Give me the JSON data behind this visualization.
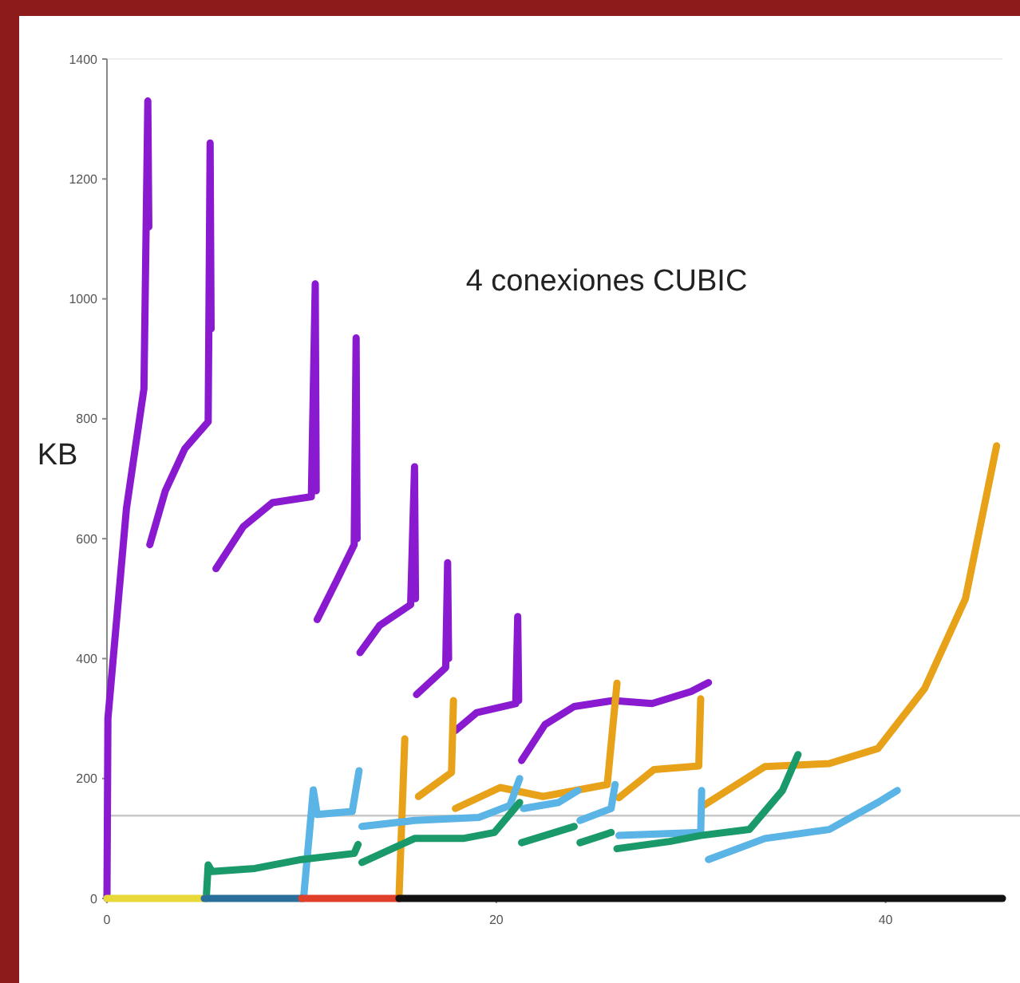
{
  "chart_data": {
    "type": "line",
    "title": "4 conexiones CUBIC",
    "ylabel": "KB",
    "xlim": [
      0,
      46
    ],
    "xticks": [
      0,
      20,
      40
    ],
    "ylim": [
      0,
      1400
    ],
    "yticks": [
      0,
      200,
      400,
      600,
      800,
      1000,
      1200,
      1400
    ],
    "grid": false,
    "marker": "none",
    "line_style": "solid",
    "ref_lines": [
      {
        "axis": "y",
        "value": 138,
        "color": "#c8c8c8"
      }
    ],
    "series": [
      {
        "color": "#8a1ad0",
        "x": [
          0,
          0.05,
          1,
          1.9,
          2.1,
          2.15,
          2.17,
          2.2,
          3,
          4,
          5.2,
          5.3,
          5.35,
          5.4,
          5.6,
          7,
          8.5,
          10.5,
          10.7,
          10.75,
          10.77,
          10.8,
          11.8,
          12.7,
          12.8,
          12.85,
          12.9,
          13,
          14,
          15.6,
          15.8,
          15.85,
          15.87,
          15.9,
          17.4,
          17.5,
          17.55,
          17.6,
          17.9,
          19,
          21,
          21.1,
          21.15,
          21.2,
          21.3,
          22.5,
          24,
          26,
          28,
          30,
          30.9
        ],
        "values": [
          0,
          300,
          650,
          850,
          1330,
          1120,
          null,
          590,
          680,
          750,
          795,
          1260,
          950,
          null,
          550,
          620,
          660,
          670,
          1025,
          680,
          null,
          465,
          530,
          590,
          935,
          600,
          null,
          410,
          455,
          490,
          720,
          500,
          null,
          340,
          385,
          560,
          400,
          null,
          280,
          310,
          325,
          470,
          330,
          null,
          230,
          290,
          320,
          330,
          325,
          345,
          360
        ]
      },
      {
        "color": "#e8a21a",
        "x": [
          15,
          15.3,
          15.35,
          16,
          17.7,
          17.8,
          17.85,
          17.9,
          20.2,
          22.4,
          25.7,
          26.2,
          26.25,
          26.3,
          28.1,
          30.4,
          30.5,
          30.55,
          30.6,
          33.8,
          37.1,
          39.6,
          42,
          44.1,
          45.7
        ],
        "values": [
          0,
          266,
          null,
          170,
          210,
          330,
          null,
          150,
          185,
          170,
          190,
          359,
          null,
          168,
          215,
          221,
          333,
          null,
          154,
          220,
          225,
          250,
          350,
          500,
          755
        ]
      },
      {
        "color": "#5ab4e5",
        "x": [
          10.1,
          10.6,
          10.8,
          12.6,
          12.95,
          13,
          13.1,
          15.8,
          19.1,
          20.7,
          21.2,
          21.25,
          21.4,
          23.2,
          24.2,
          24.25,
          24.3,
          25.9,
          26.1,
          26.15,
          26.3,
          30.5,
          30.55,
          30.6,
          30.9,
          33.8,
          37.1,
          39.6,
          40.6
        ],
        "values": [
          0,
          181,
          140,
          145,
          213,
          null,
          120,
          130,
          135,
          155,
          200,
          null,
          150,
          160,
          180,
          null,
          130,
          150,
          190,
          null,
          105,
          110,
          180,
          null,
          65,
          100,
          115,
          160,
          180
        ]
      },
      {
        "color": "#1a9a6a",
        "x": [
          5.1,
          5.2,
          5.4,
          7.6,
          10,
          12.7,
          12.9,
          12.95,
          13.1,
          15.8,
          18.3,
          19.9,
          21.2,
          21.25,
          21.3,
          24,
          24.05,
          24.3,
          25.9,
          25.95,
          26.2,
          28.9,
          30.5,
          33,
          34.7,
          35.5
        ],
        "values": [
          0,
          56,
          45,
          50,
          65,
          75,
          90,
          null,
          60,
          100,
          100,
          110,
          160,
          null,
          93,
          120,
          null,
          93,
          110,
          null,
          83,
          95,
          105,
          115,
          180,
          240
        ]
      },
      {
        "color": "#e8d83a",
        "x": [
          0,
          5
        ],
        "values": [
          0,
          0
        ]
      },
      {
        "color": "#2a6f9c",
        "x": [
          5,
          10
        ],
        "values": [
          0,
          0
        ]
      },
      {
        "color": "#e0402a",
        "x": [
          10,
          15
        ],
        "values": [
          0,
          0
        ]
      },
      {
        "color": "#111111",
        "x": [
          15,
          46
        ],
        "values": [
          0,
          0
        ]
      }
    ]
  }
}
